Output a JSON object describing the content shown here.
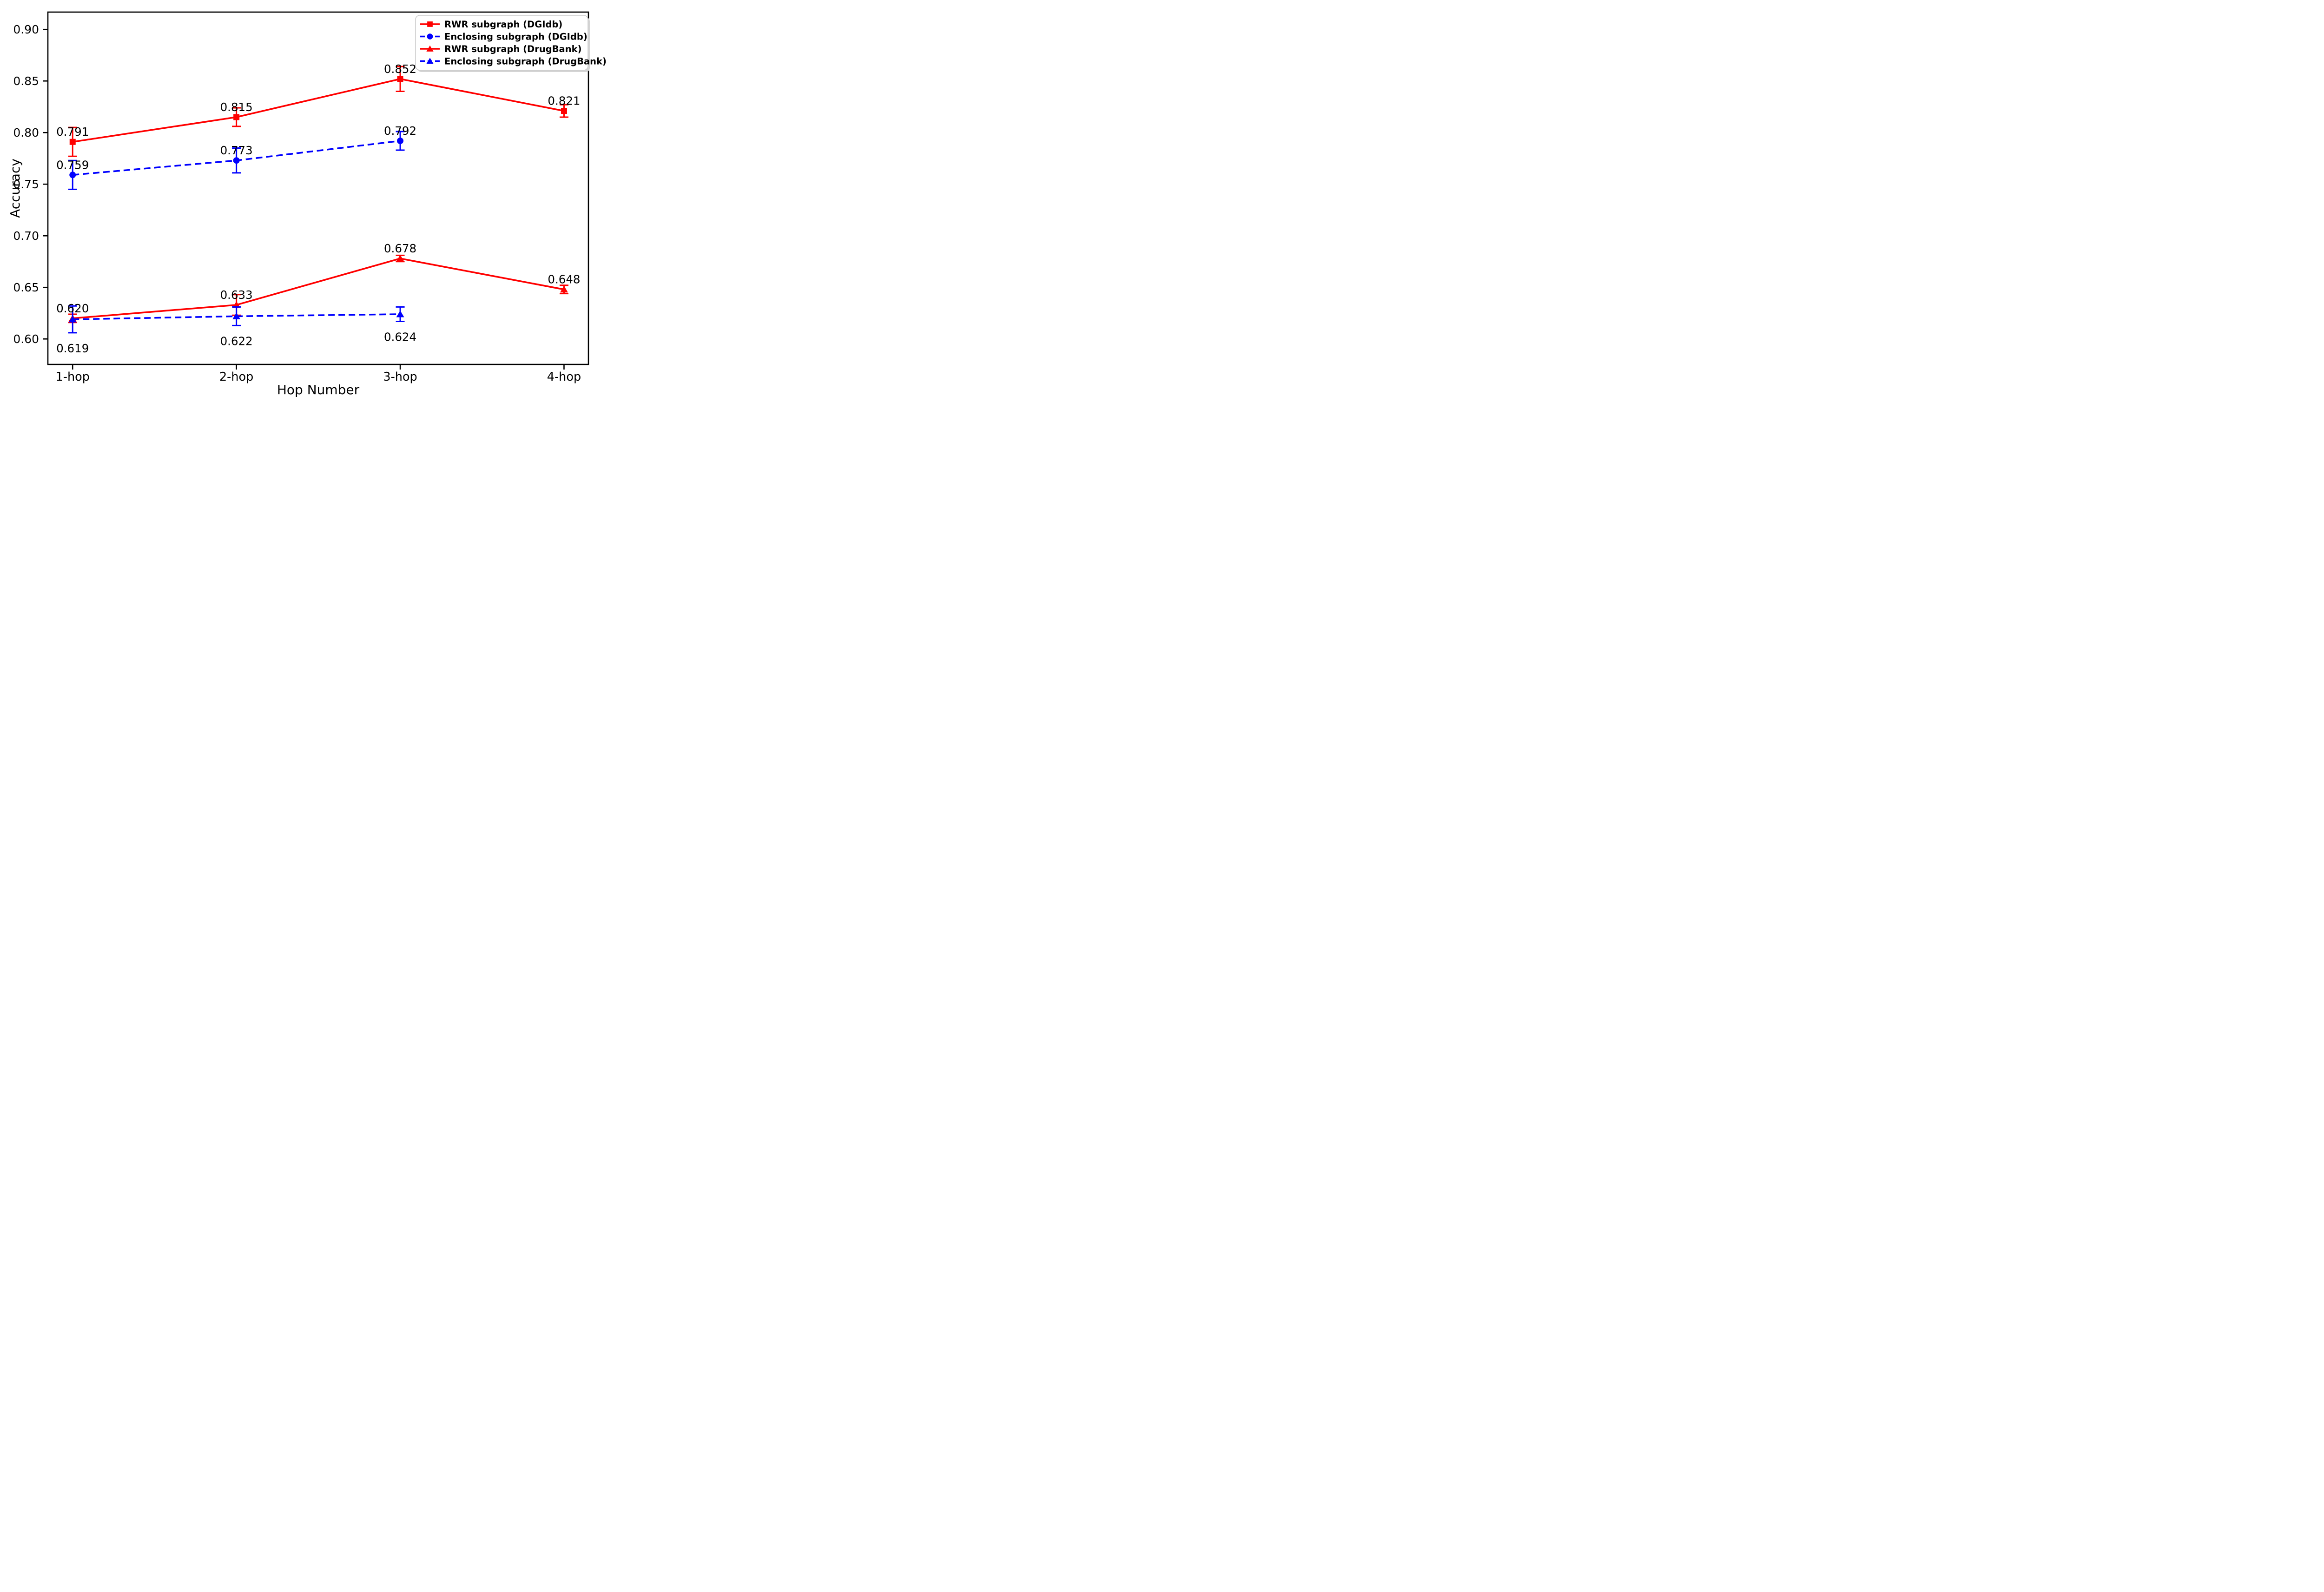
{
  "figure": {
    "background": "#ffffff",
    "plot_border_color": "#000000",
    "text_color": "#000000"
  },
  "chart_data": {
    "type": "line",
    "title": "",
    "xlabel": "Hop Number",
    "ylabel": "Accuracy",
    "categories": [
      "1-hop",
      "2-hop",
      "3-hop",
      "4-hop"
    ],
    "yticks": [
      "0.60",
      "0.65",
      "0.70",
      "0.75",
      "0.80",
      "0.85",
      "0.90"
    ],
    "ytick_values": [
      0.6,
      0.65,
      0.7,
      0.75,
      0.8,
      0.85,
      0.9
    ],
    "ylim": [
      0.575,
      0.917
    ],
    "grid": false,
    "legend_position": "upper right",
    "accent_colors": {
      "red": "#ff0000",
      "blue": "#0000ff"
    },
    "series": [
      {
        "name": "RWR subgraph (DGIdb)",
        "color": "#ff0000",
        "linestyle": "solid",
        "marker": "square",
        "values": [
          0.791,
          0.815,
          0.852,
          0.821
        ],
        "errors": [
          0.014,
          0.009,
          0.012,
          0.006
        ],
        "labels": [
          "0.791",
          "0.815",
          "0.852",
          "0.821"
        ],
        "label_side": [
          "above",
          "above",
          "above",
          "above"
        ]
      },
      {
        "name": "Enclosing subgraph (DGIdb)",
        "color": "#0000ff",
        "linestyle": "dashed",
        "marker": "circle",
        "values": [
          0.759,
          0.773,
          0.792,
          null
        ],
        "errors": [
          0.014,
          0.012,
          0.009,
          null
        ],
        "labels": [
          "0.759",
          "0.773",
          "0.792",
          null
        ],
        "label_side": [
          "above",
          "above",
          "above",
          null
        ]
      },
      {
        "name": "RWR subgraph (DrugBank)",
        "color": "#ff0000",
        "linestyle": "solid",
        "marker": "triangle",
        "values": [
          0.62,
          0.633,
          0.678,
          0.648
        ],
        "errors": [
          0.004,
          0.01,
          0.003,
          0.004
        ],
        "labels": [
          "0.620",
          "0.633",
          "0.678",
          "0.648"
        ],
        "label_side": [
          "above",
          "above",
          "above",
          "above"
        ]
      },
      {
        "name": "Enclosing subgraph (DrugBank)",
        "color": "#0000ff",
        "linestyle": "dashed",
        "marker": "triangle",
        "values": [
          0.619,
          0.622,
          0.624,
          null
        ],
        "errors": [
          0.013,
          0.009,
          0.007,
          null
        ],
        "labels": [
          "0.619",
          "0.622",
          "0.624",
          null
        ],
        "label_side": [
          "below",
          "below",
          "below",
          null
        ]
      }
    ]
  }
}
